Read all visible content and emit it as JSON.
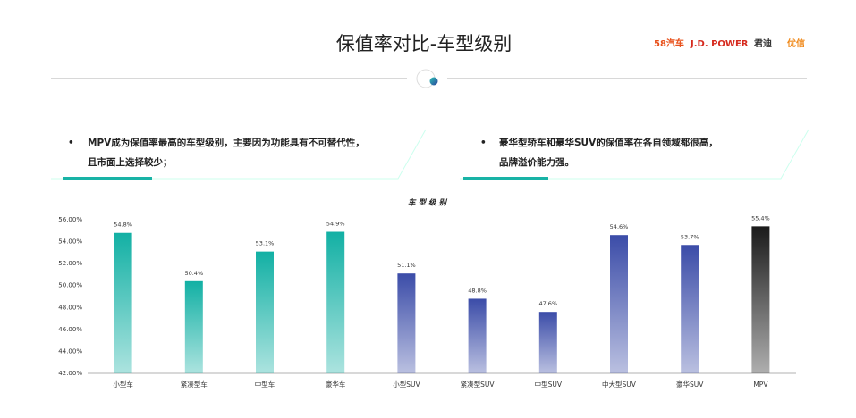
{
  "header": {
    "title": "保值率对比-车型级别",
    "logos": [
      "58汽车",
      "J.D. POWER",
      "君迪",
      "优信"
    ]
  },
  "bullets": [
    {
      "lines": [
        "MPV成为保值率最高的车型级别，主要因为功能具有不可替代性，",
        "且市面上选择较少；"
      ]
    },
    {
      "lines": [
        "豪华型轿车和豪华SUV的保值率在各自领域都很高，",
        "品牌溢价能力强。"
      ]
    }
  ],
  "chart_data": {
    "type": "bar",
    "title": "车型级别",
    "categories": [
      "小型车",
      "紧凑型车",
      "中型车",
      "豪华车",
      "小型SUV",
      "紧凑型SUV",
      "中型SUV",
      "中大型SUV",
      "豪华SUV",
      "MPV"
    ],
    "values": [
      54.8,
      50.4,
      53.1,
      54.9,
      51.1,
      48.8,
      47.6,
      54.6,
      53.7,
      55.4
    ],
    "value_labels": [
      "54.8%",
      "50.4%",
      "53.1%",
      "54.9%",
      "51.1%",
      "48.8%",
      "47.6%",
      "54.6%",
      "53.7%",
      "55.4%"
    ],
    "colors": [
      "#12b0a4",
      "#12b0a4",
      "#12b0a4",
      "#12b0a4",
      "#3b4ca8",
      "#3b4ca8",
      "#3b4ca8",
      "#3b4ca8",
      "#3b4ca8",
      "#1a1a1a"
    ],
    "ylim": [
      42,
      56
    ],
    "yticks": [
      {
        "value": 42,
        "label": "42.00%"
      },
      {
        "value": 44,
        "label": "44.00%"
      },
      {
        "value": 46,
        "label": "46.00%"
      },
      {
        "value": 48,
        "label": "48.00%"
      },
      {
        "value": 50,
        "label": "50.00%"
      },
      {
        "value": 52,
        "label": "52.00%"
      },
      {
        "value": 54,
        "label": "54.00%"
      },
      {
        "value": 56,
        "label": "56.00%"
      }
    ],
    "grid": false
  }
}
